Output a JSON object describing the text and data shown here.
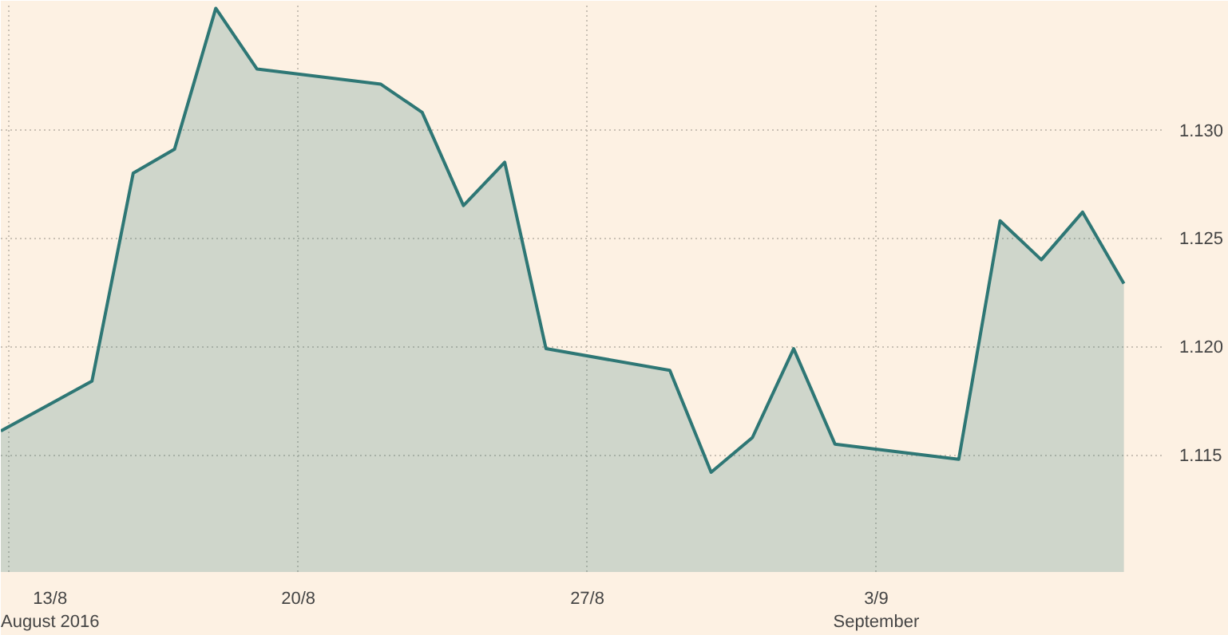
{
  "chart_data": {
    "type": "area",
    "x": [
      "2016-08-12T19:00",
      "2016-08-15",
      "2016-08-16",
      "2016-08-17",
      "2016-08-18",
      "2016-08-19",
      "2016-08-22",
      "2016-08-23",
      "2016-08-24",
      "2016-08-25",
      "2016-08-26",
      "2016-08-29",
      "2016-08-30",
      "2016-08-31",
      "2016-09-01",
      "2016-09-02",
      "2016-09-05",
      "2016-09-06",
      "2016-09-07",
      "2016-09-08",
      "2016-09-09"
    ],
    "series": [
      {
        "color": "#2e7775",
        "values": [
          1.1161,
          1.1184,
          1.128,
          1.1291,
          1.1356,
          1.1328,
          1.1321,
          1.1308,
          1.1265,
          1.1285,
          1.1199,
          1.1189,
          1.1142,
          1.1158,
          1.1199,
          1.1155,
          1.1148,
          1.1258,
          1.124,
          1.1262,
          1.1229
        ]
      }
    ],
    "xlim": [
      "2016-08-12T19:00",
      "2016-09-09T22:00"
    ],
    "ylim": [
      1.1096,
      1.1358
    ],
    "xticks": [
      {
        "value": "2016-08-13",
        "label": "13/8\nAugust 2016"
      },
      {
        "value": "2016-08-20",
        "label": "20/8"
      },
      {
        "value": "2016-08-27",
        "label": "27/8"
      },
      {
        "value": "2016-09-03",
        "label": "3/9\nSeptember"
      }
    ],
    "yticks": [
      {
        "value": 1.115,
        "label": "1.115"
      },
      {
        "value": 1.12,
        "label": "1.120"
      },
      {
        "value": 1.125,
        "label": "1.125"
      },
      {
        "value": 1.13,
        "label": "1.130"
      }
    ],
    "grid": true
  }
}
